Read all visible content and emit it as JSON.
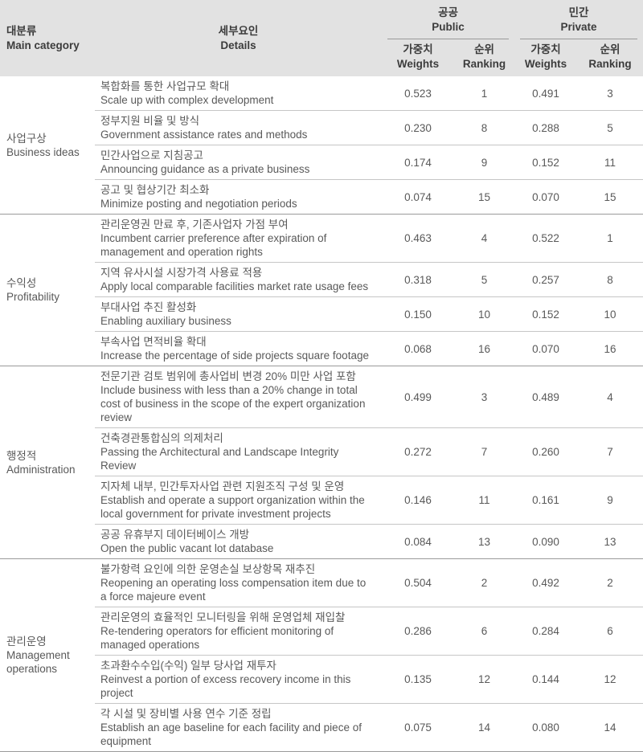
{
  "table": {
    "header": {
      "main_category_ko": "대분류",
      "main_category_en": "Main category",
      "details_ko": "세부요인",
      "details_en": "Details",
      "public_ko": "공공",
      "public_en": "Public",
      "private_ko": "민간",
      "private_en": "Private",
      "weights_ko": "가중치",
      "weights_en": "Weights",
      "ranking_ko": "순위",
      "ranking_en": "Ranking"
    },
    "groups": [
      {
        "category_ko": "사업구상",
        "category_en": "Business ideas",
        "rows": [
          {
            "detail_ko": "복합화를 통한 사업규모 확대",
            "detail_en": "Scale up with complex development",
            "public_weight": "0.523",
            "public_rank": "1",
            "private_weight": "0.491",
            "private_rank": "3"
          },
          {
            "detail_ko": "정부지원 비율 및 방식",
            "detail_en": "Government assistance rates and methods",
            "public_weight": "0.230",
            "public_rank": "8",
            "private_weight": "0.288",
            "private_rank": "5"
          },
          {
            "detail_ko": "민간사업으로 지침공고",
            "detail_en": "Announcing guidance as a private business",
            "public_weight": "0.174",
            "public_rank": "9",
            "private_weight": "0.152",
            "private_rank": "11"
          },
          {
            "detail_ko": "공고 및 협상기간 최소화",
            "detail_en": "Minimize posting and negotiation periods",
            "public_weight": "0.074",
            "public_rank": "15",
            "private_weight": "0.070",
            "private_rank": "15"
          }
        ]
      },
      {
        "category_ko": "수익성",
        "category_en": "Profitability",
        "rows": [
          {
            "detail_ko": "관리운영권 만료 후, 기존사업자 가점 부여",
            "detail_en": "Incumbent carrier preference after expiration of management and operation rights",
            "public_weight": "0.463",
            "public_rank": "4",
            "private_weight": "0.522",
            "private_rank": "1"
          },
          {
            "detail_ko": "지역 유사시설 시장가격 사용료 적용",
            "detail_en": "Apply local comparable facilities market rate usage fees",
            "public_weight": "0.318",
            "public_rank": "5",
            "private_weight": "0.257",
            "private_rank": "8"
          },
          {
            "detail_ko": "부대사업 추진 활성화",
            "detail_en": "Enabling auxiliary business",
            "public_weight": "0.150",
            "public_rank": "10",
            "private_weight": "0.152",
            "private_rank": "10"
          },
          {
            "detail_ko": "부속사업 면적비율 확대",
            "detail_en": "Increase the percentage of side projects square footage",
            "public_weight": "0.068",
            "public_rank": "16",
            "private_weight": "0.070",
            "private_rank": "16"
          }
        ]
      },
      {
        "category_ko": "행정적",
        "category_en": "Administration",
        "rows": [
          {
            "detail_ko": "전문기관 검토 범위에 총사업비 변경 20% 미만 사업 포함",
            "detail_en": "Include business with less than a 20% change in total cost of business in the scope of the expert organization review",
            "public_weight": "0.499",
            "public_rank": "3",
            "private_weight": "0.489",
            "private_rank": "4"
          },
          {
            "detail_ko": "건축경관통합심의 의제처리",
            "detail_en": "Passing the Architectural and Landscape Integrity Review",
            "public_weight": "0.272",
            "public_rank": "7",
            "private_weight": "0.260",
            "private_rank": "7"
          },
          {
            "detail_ko": "지자체 내부, 민간투자사업 관련 지원조직 구성 및 운영",
            "detail_en": "Establish and operate a support organization within the local government for private investment projects",
            "public_weight": "0.146",
            "public_rank": "11",
            "private_weight": "0.161",
            "private_rank": "9"
          },
          {
            "detail_ko": "공공 유휴부지 데이터베이스 개방",
            "detail_en": "Open the public vacant lot database",
            "public_weight": "0.084",
            "public_rank": "13",
            "private_weight": "0.090",
            "private_rank": "13"
          }
        ]
      },
      {
        "category_ko": "관리운영",
        "category_en": "Management operations",
        "rows": [
          {
            "detail_ko": "불가항력 요인에 의한 운영손실 보상항목 재추진",
            "detail_en": "Reopening an operating loss compensation item due to a force majeure event",
            "public_weight": "0.504",
            "public_rank": "2",
            "private_weight": "0.492",
            "private_rank": "2"
          },
          {
            "detail_ko": "관리운영의 효율적인 모니터링을 위해 운영업체 재입찰",
            "detail_en": "Re-tendering operators for efficient monitoring of managed operations",
            "public_weight": "0.286",
            "public_rank": "6",
            "private_weight": "0.284",
            "private_rank": "6"
          },
          {
            "detail_ko": "초과환수수입(수익) 일부 당사업 재투자",
            "detail_en": "Reinvest a portion of excess recovery income in this project",
            "public_weight": "0.135",
            "public_rank": "12",
            "private_weight": "0.144",
            "private_rank": "12"
          },
          {
            "detail_ko": "각 시설 및 장비별 사용 연수 기준 정립",
            "detail_en": "Establish an age baseline for each facility and piece of equipment",
            "public_weight": "0.075",
            "public_rank": "14",
            "private_weight": "0.080",
            "private_rank": "14"
          }
        ]
      }
    ]
  },
  "colors": {
    "header_bg": "#e2e2e2",
    "header_text": "#3c3c3c",
    "body_text": "#595959",
    "line_light": "#c6c6c6",
    "line_dark": "#9a9a9a"
  }
}
